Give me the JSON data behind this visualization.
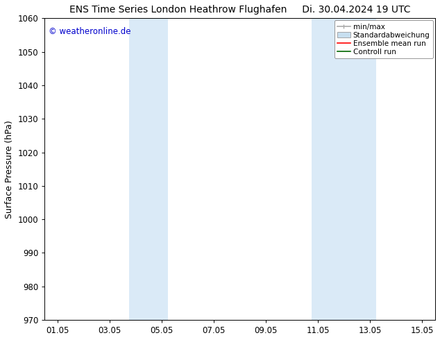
{
  "title_left": "ENS Time Series London Heathrow Flughafen",
  "title_right": "Di. 30.04.2024 19 UTC",
  "ylabel": "Surface Pressure (hPa)",
  "ylim": [
    970,
    1060
  ],
  "yticks": [
    970,
    980,
    990,
    1000,
    1010,
    1020,
    1030,
    1040,
    1050,
    1060
  ],
  "xtick_labels": [
    "01.05",
    "03.05",
    "05.05",
    "07.05",
    "09.05",
    "11.05",
    "13.05",
    "15.05"
  ],
  "xtick_positions": [
    1,
    3,
    5,
    7,
    9,
    11,
    13,
    15
  ],
  "xlim": [
    0.5,
    15.5
  ],
  "shaded_regions": [
    {
      "xmin": 3.75,
      "xmax": 5.25,
      "color": "#daeaf7"
    },
    {
      "xmin": 10.75,
      "xmax": 13.25,
      "color": "#daeaf7"
    }
  ],
  "watermark_text": "© weatheronline.de",
  "watermark_color": "#0000cc",
  "legend_items": [
    {
      "label": "min/max",
      "color": "#aaaaaa",
      "style": "hline"
    },
    {
      "label": "Standardabweichung",
      "color": "#c8dff0",
      "style": "box"
    },
    {
      "label": "Ensemble mean run",
      "color": "#ff0000",
      "style": "line"
    },
    {
      "label": "Controll run",
      "color": "#006600",
      "style": "line"
    }
  ],
  "bg_color": "#ffffff",
  "plot_bg_color": "#ffffff",
  "grid_color": "#cccccc",
  "title_fontsize": 10,
  "axis_fontsize": 9,
  "tick_fontsize": 8.5,
  "legend_fontsize": 7.5
}
